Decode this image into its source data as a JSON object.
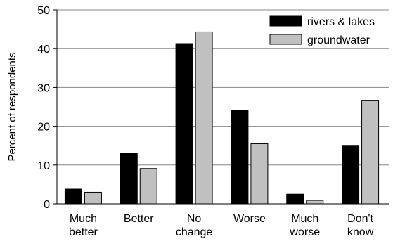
{
  "chart_data": {
    "type": "bar",
    "categories": [
      [
        "Much",
        "better"
      ],
      [
        "Better"
      ],
      [
        "No",
        "change"
      ],
      [
        "Worse"
      ],
      [
        "Much",
        "worse"
      ],
      [
        "Don't",
        "know"
      ]
    ],
    "series": [
      {
        "name": "rivers & lakes",
        "color": "#000000",
        "values": [
          3.8,
          13.1,
          41.3,
          24.1,
          2.5,
          14.9
        ]
      },
      {
        "name": "groundwater",
        "color": "#c0c0c0",
        "values": [
          3.0,
          9.1,
          44.3,
          15.5,
          0.9,
          26.7
        ]
      }
    ],
    "ylabel": "Percent of respondents",
    "ylim": [
      0,
      50
    ],
    "yticks": [
      0,
      10,
      20,
      30,
      40,
      50
    ],
    "grid": true,
    "legend": "top-right"
  }
}
